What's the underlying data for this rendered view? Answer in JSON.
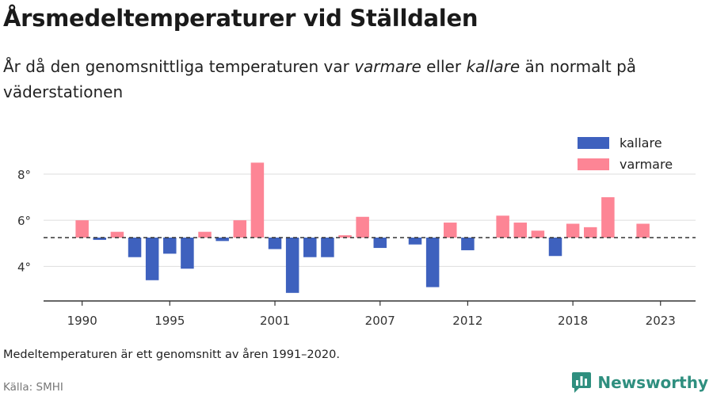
{
  "title": "Årsmedeltemperaturer vid Ställdalen",
  "subtitle": {
    "before": "År då den genomsnittliga temperaturen var ",
    "warm": "varmare",
    "middle": " eller ",
    "cold": "kallare",
    "after": " än normalt på väderstationen"
  },
  "note": "Medeltemperaturen är ett genomsnitt av åren 1991–2020.",
  "source": "Källa: SMHI",
  "brand": {
    "name": "Newsworthy",
    "color": "#2f8f7f"
  },
  "chart_data": {
    "type": "bar",
    "baseline": 5.25,
    "ylim": [
      2.5,
      9.2
    ],
    "yticks": [
      4,
      6,
      8
    ],
    "ytick_labels": [
      "4°",
      "6°",
      "8°"
    ],
    "xlim": [
      1987.8,
      2025
    ],
    "xticks": [
      1990,
      1995,
      2001,
      2007,
      2012,
      2018,
      2023
    ],
    "grid": true,
    "legend_position": "top-right",
    "series": [
      {
        "name": "kallare",
        "color": "#3e61be",
        "key": "cold"
      },
      {
        "name": "varmare",
        "color": "#fd8595",
        "key": "warm"
      }
    ],
    "x": [
      1990,
      1991,
      1992,
      1993,
      1994,
      1995,
      1996,
      1997,
      1998,
      1999,
      2000,
      2001,
      2002,
      2003,
      2004,
      2005,
      2006,
      2007,
      2008,
      2009,
      2010,
      2011,
      2012,
      2013,
      2014,
      2015,
      2016,
      2017,
      2018,
      2019,
      2020,
      2021,
      2022
    ],
    "values": [
      6.0,
      5.15,
      5.5,
      4.4,
      3.4,
      4.55,
      3.9,
      5.5,
      5.1,
      6.0,
      8.5,
      4.75,
      2.85,
      4.4,
      4.4,
      5.35,
      6.15,
      4.8,
      5.25,
      4.95,
      3.1,
      5.9,
      4.7,
      5.25,
      6.2,
      5.9,
      5.55,
      4.45,
      5.85,
      5.7,
      7.0,
      5.25,
      5.85
    ]
  }
}
